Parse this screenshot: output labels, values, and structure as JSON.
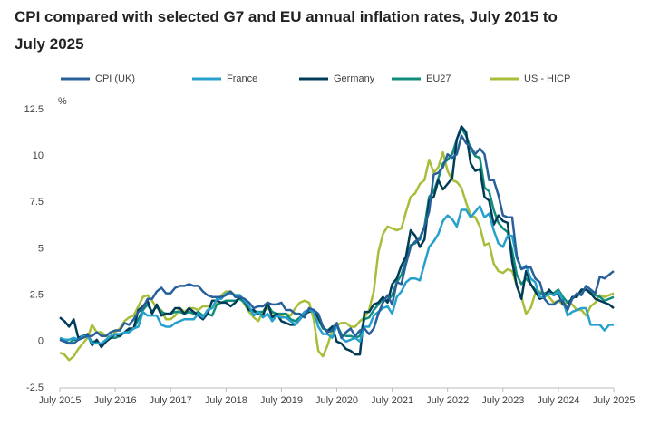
{
  "chart_data": {
    "type": "line",
    "title": "CPI compared with selected G7 and EU annual inflation rates, July 2015 to July 2025",
    "y_unit": "%",
    "categories": [
      "July 2015",
      null,
      null,
      null,
      null,
      null,
      null,
      null,
      null,
      null,
      null,
      null,
      "July 2016",
      null,
      null,
      null,
      null,
      null,
      null,
      null,
      null,
      null,
      null,
      null,
      "July 2017",
      null,
      null,
      null,
      null,
      null,
      null,
      null,
      null,
      null,
      null,
      null,
      "July 2018",
      null,
      null,
      null,
      null,
      null,
      null,
      null,
      null,
      null,
      null,
      null,
      "July 2019",
      null,
      null,
      null,
      null,
      null,
      null,
      null,
      null,
      null,
      null,
      null,
      "July 2020",
      null,
      null,
      null,
      null,
      null,
      null,
      null,
      null,
      null,
      null,
      null,
      "July 2021",
      null,
      null,
      null,
      null,
      null,
      null,
      null,
      null,
      null,
      null,
      null,
      "July 2022",
      null,
      null,
      null,
      null,
      null,
      null,
      null,
      null,
      null,
      null,
      null,
      "July 2023",
      null,
      null,
      null,
      null,
      null,
      null,
      null,
      null,
      null,
      null,
      null,
      "July 2024",
      null,
      null,
      null,
      null,
      null,
      null,
      null,
      null,
      null,
      null,
      null,
      "July 2025"
    ],
    "ylim": [
      -2.5,
      12.5
    ],
    "yticks": [
      -2.5,
      0,
      2.5,
      5,
      7.5,
      10,
      12.5
    ],
    "grid": false,
    "series": [
      {
        "name": "CPI (UK)",
        "color": "#27609a",
        "values": [
          0.1,
          0.0,
          -0.1,
          -0.1,
          0.1,
          0.2,
          0.3,
          0.3,
          0.5,
          0.3,
          0.3,
          0.5,
          0.6,
          0.6,
          1.0,
          0.9,
          1.2,
          1.6,
          1.8,
          2.3,
          2.3,
          2.7,
          2.9,
          2.6,
          2.6,
          2.9,
          3.0,
          3.0,
          3.1,
          3.0,
          3.0,
          2.7,
          2.5,
          2.4,
          2.4,
          2.4,
          2.5,
          2.7,
          2.4,
          2.4,
          2.3,
          2.1,
          1.8,
          1.9,
          1.9,
          2.1,
          2.0,
          2.0,
          2.1,
          1.7,
          1.7,
          1.5,
          1.5,
          1.3,
          1.8,
          1.7,
          1.5,
          0.8,
          0.5,
          0.6,
          1.0,
          0.2,
          0.5,
          0.7,
          0.3,
          0.6,
          0.7,
          0.4,
          0.7,
          1.5,
          2.1,
          2.5,
          2.0,
          3.2,
          3.1,
          4.2,
          5.1,
          5.4,
          5.5,
          6.2,
          7.0,
          9.0,
          9.1,
          9.4,
          10.1,
          9.9,
          10.1,
          11.1,
          10.7,
          10.5,
          10.1,
          10.4,
          10.1,
          8.7,
          8.7,
          7.9,
          6.8,
          6.7,
          6.7,
          4.6,
          3.9,
          4.0,
          4.0,
          3.4,
          3.2,
          2.3,
          2.0,
          2.0,
          2.2,
          2.2,
          1.7,
          2.3,
          2.6,
          2.5,
          3.0,
          2.8,
          2.6,
          3.5,
          3.4,
          3.6,
          3.8
        ]
      },
      {
        "name": "France",
        "color": "#27a0cc",
        "values": [
          0.2,
          0.1,
          0.1,
          0.2,
          0.1,
          0.3,
          0.3,
          -0.1,
          -0.1,
          -0.1,
          0.1,
          0.3,
          0.4,
          0.4,
          0.5,
          0.5,
          0.7,
          0.8,
          1.6,
          1.4,
          1.4,
          1.4,
          0.9,
          0.8,
          0.8,
          1.0,
          1.1,
          1.2,
          1.2,
          1.2,
          1.5,
          1.3,
          1.7,
          1.8,
          2.3,
          2.3,
          2.6,
          2.6,
          2.5,
          2.5,
          2.2,
          1.9,
          1.4,
          1.6,
          1.3,
          1.5,
          1.1,
          1.4,
          1.3,
          1.3,
          1.1,
          0.9,
          1.2,
          1.6,
          1.7,
          1.6,
          0.8,
          0.4,
          0.4,
          0.2,
          0.9,
          0.2,
          0.0,
          0.1,
          0.2,
          0.0,
          0.8,
          0.8,
          1.4,
          1.6,
          1.8,
          1.9,
          1.5,
          2.4,
          2.7,
          3.2,
          3.4,
          3.4,
          3.3,
          4.2,
          5.1,
          5.4,
          5.8,
          6.5,
          6.8,
          6.6,
          6.2,
          7.1,
          7.1,
          6.7,
          7.0,
          7.3,
          6.7,
          6.9,
          6.0,
          5.3,
          5.1,
          5.7,
          5.7,
          4.5,
          3.9,
          4.1,
          3.4,
          3.2,
          2.4,
          2.4,
          2.6,
          2.5,
          2.7,
          2.2,
          1.4,
          1.6,
          1.7,
          1.8,
          1.8,
          0.9,
          0.9,
          0.9,
          0.6,
          0.9,
          0.9
        ]
      },
      {
        "name": "Germany",
        "color": "#003c57",
        "values": [
          1.3,
          1.1,
          0.8,
          1.2,
          0.2,
          0.3,
          0.4,
          -0.2,
          0.1,
          -0.3,
          0.0,
          0.2,
          0.4,
          0.3,
          0.5,
          0.7,
          0.7,
          1.7,
          1.9,
          2.2,
          1.5,
          2.0,
          1.4,
          1.5,
          1.5,
          1.8,
          1.8,
          1.5,
          1.8,
          1.6,
          1.4,
          1.2,
          1.5,
          2.2,
          2.2,
          2.1,
          2.1,
          1.9,
          2.1,
          2.4,
          2.2,
          1.7,
          1.7,
          1.5,
          1.4,
          2.1,
          1.3,
          1.5,
          1.1,
          1.0,
          0.9,
          0.9,
          1.2,
          1.5,
          1.6,
          1.7,
          1.3,
          0.8,
          0.5,
          0.8,
          0.0,
          -0.1,
          -0.4,
          -0.5,
          -0.7,
          -0.7,
          1.6,
          1.6,
          2.0,
          2.1,
          2.4,
          2.1,
          3.1,
          3.4,
          4.1,
          4.6,
          6.0,
          5.7,
          5.1,
          5.5,
          7.6,
          7.8,
          8.7,
          8.2,
          8.5,
          8.8,
          10.9,
          11.6,
          11.3,
          9.6,
          9.2,
          9.3,
          7.8,
          7.6,
          6.3,
          6.8,
          6.5,
          6.4,
          4.3,
          3.0,
          2.3,
          3.8,
          3.1,
          2.7,
          2.3,
          2.4,
          2.8,
          2.5,
          2.6,
          2.0,
          1.8,
          2.4,
          2.4,
          2.8,
          2.8,
          2.6,
          2.3,
          2.2,
          2.1,
          2.0,
          1.8
        ]
      },
      {
        "name": "EU27",
        "color": "#118c7b",
        "values": [
          0.1,
          0.1,
          -0.1,
          0.1,
          0.1,
          0.2,
          0.3,
          0.0,
          0.0,
          -0.2,
          0.0,
          0.2,
          0.2,
          0.3,
          0.5,
          0.6,
          0.7,
          1.2,
          1.7,
          2.0,
          1.6,
          1.9,
          1.6,
          1.5,
          1.5,
          1.6,
          1.6,
          1.5,
          1.6,
          1.5,
          1.6,
          1.4,
          1.5,
          1.4,
          2.0,
          2.1,
          2.2,
          2.2,
          2.2,
          2.3,
          2.1,
          1.7,
          1.6,
          1.6,
          1.6,
          2.0,
          1.6,
          1.5,
          1.5,
          1.5,
          1.2,
          1.1,
          1.3,
          1.6,
          1.7,
          1.6,
          1.2,
          0.7,
          0.6,
          0.8,
          0.9,
          0.4,
          0.3,
          0.3,
          0.2,
          0.3,
          1.2,
          1.3,
          1.7,
          2.0,
          2.3,
          2.2,
          2.5,
          3.2,
          3.6,
          4.4,
          5.2,
          5.3,
          5.6,
          6.2,
          7.8,
          8.1,
          8.8,
          9.6,
          9.8,
          10.1,
          10.9,
          11.5,
          11.1,
          10.4,
          10.0,
          9.9,
          8.3,
          8.1,
          7.1,
          6.4,
          6.1,
          5.9,
          4.9,
          3.6,
          3.1,
          3.4,
          3.1,
          2.8,
          2.6,
          2.6,
          2.7,
          2.6,
          2.8,
          2.4,
          2.1,
          2.3,
          2.5,
          2.7,
          2.8,
          2.7,
          2.5,
          2.4,
          2.2,
          2.3,
          2.4
        ]
      },
      {
        "name": "US - HICP",
        "color": "#a8bd3a",
        "values": [
          -0.6,
          -0.7,
          -1.0,
          -0.8,
          -0.4,
          -0.1,
          0.2,
          0.9,
          0.5,
          0.5,
          0.3,
          0.2,
          0.5,
          0.7,
          1.1,
          1.3,
          1.4,
          1.9,
          2.4,
          2.5,
          2.2,
          1.8,
          1.7,
          1.2,
          1.2,
          1.4,
          1.8,
          1.6,
          1.8,
          1.8,
          1.7,
          1.9,
          1.9,
          1.8,
          2.2,
          2.5,
          2.7,
          2.7,
          2.5,
          2.5,
          2.0,
          1.6,
          1.3,
          1.1,
          1.6,
          1.8,
          1.6,
          1.4,
          1.4,
          1.5,
          1.4,
          1.8,
          2.1,
          2.2,
          2.1,
          1.2,
          -0.5,
          -0.8,
          -0.2,
          0.6,
          0.9,
          1.0,
          1.0,
          0.8,
          0.8,
          1.1,
          1.3,
          1.7,
          2.7,
          4.8,
          5.8,
          6.2,
          6.1,
          6.0,
          6.1,
          7.0,
          7.8,
          8.0,
          8.5,
          8.7,
          9.8,
          9.1,
          9.4,
          10.2,
          9.2,
          8.7,
          8.6,
          8.3,
          7.5,
          6.8,
          6.7,
          6.2,
          5.2,
          5.3,
          4.2,
          3.8,
          3.7,
          3.9,
          3.8,
          3.0,
          2.4,
          1.5,
          1.8,
          2.6,
          2.7,
          2.6,
          2.4,
          2.1,
          2.2,
          2.0,
          2.1,
          2.0,
          1.7,
          1.7,
          1.4,
          1.9,
          2.1,
          2.5,
          2.4,
          2.5,
          2.6
        ]
      }
    ]
  }
}
